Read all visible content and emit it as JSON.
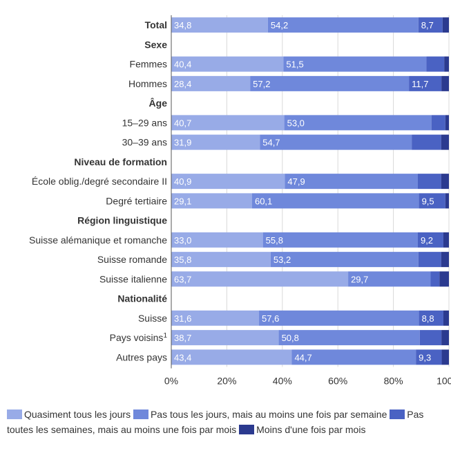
{
  "chart_data": {
    "type": "bar",
    "orientation": "horizontal",
    "stacked": true,
    "rows": [
      {
        "label": "Total",
        "kind": "row",
        "bold": true,
        "values": [
          34.8,
          54.2,
          8.7,
          2.3
        ],
        "labels": [
          "34,8",
          "54,2",
          "8,7",
          ""
        ]
      },
      {
        "label": "Sexe",
        "kind": "header"
      },
      {
        "label": "Femmes",
        "kind": "row",
        "values": [
          40.4,
          51.5,
          6.4,
          1.7
        ],
        "labels": [
          "40,4",
          "51,5",
          "",
          ""
        ]
      },
      {
        "label": "Hommes",
        "kind": "row",
        "values": [
          28.4,
          57.2,
          11.7,
          2.7
        ],
        "labels": [
          "28,4",
          "57,2",
          "11,7",
          ""
        ]
      },
      {
        "label": "Âge",
        "kind": "header"
      },
      {
        "label": "15–29 ans",
        "kind": "row",
        "values": [
          40.7,
          53.0,
          5.0,
          1.3
        ],
        "labels": [
          "40,7",
          "53,0",
          "",
          ""
        ]
      },
      {
        "label": "30–39 ans",
        "kind": "row",
        "values": [
          31.9,
          54.7,
          10.6,
          2.8
        ],
        "labels": [
          "31,9",
          "54,7",
          "",
          ""
        ]
      },
      {
        "label": "Niveau de formation",
        "kind": "header"
      },
      {
        "label": "École oblig./degré secondaire II",
        "kind": "row",
        "values": [
          40.9,
          47.9,
          8.4,
          2.8
        ],
        "labels": [
          "40,9",
          "47,9",
          "",
          ""
        ]
      },
      {
        "label": "Degré tertiaire",
        "kind": "row",
        "values": [
          29.1,
          60.1,
          9.5,
          1.3
        ],
        "labels": [
          "29,1",
          "60,1",
          "9,5",
          ""
        ]
      },
      {
        "label": "Région linguistique",
        "kind": "header"
      },
      {
        "label": "Suisse alémanique et romanche",
        "kind": "row",
        "values": [
          33.0,
          55.8,
          9.2,
          2.0
        ],
        "labels": [
          "33,0",
          "55,8",
          "9,2",
          ""
        ]
      },
      {
        "label": "Suisse romande",
        "kind": "row",
        "values": [
          35.8,
          53.2,
          8.2,
          2.8
        ],
        "labels": [
          "35,8",
          "53,2",
          "",
          ""
        ]
      },
      {
        "label": "Suisse italienne",
        "kind": "row",
        "values": [
          63.7,
          29.7,
          3.2,
          3.4
        ],
        "labels": [
          "63,7",
          "29,7",
          "",
          ""
        ]
      },
      {
        "label": "Nationalité",
        "kind": "header"
      },
      {
        "label": "Suisse",
        "kind": "row",
        "values": [
          31.6,
          57.6,
          8.8,
          2.0
        ],
        "labels": [
          "31,6",
          "57,6",
          "8,8",
          ""
        ]
      },
      {
        "label": "Pays voisins",
        "sup": "1",
        "kind": "row",
        "values": [
          38.7,
          50.8,
          7.8,
          2.7
        ],
        "labels": [
          "38,7",
          "50,8",
          "",
          ""
        ]
      },
      {
        "label": "Autres pays",
        "kind": "row",
        "values": [
          43.4,
          44.7,
          9.3,
          2.6
        ],
        "labels": [
          "43,4",
          "44,7",
          "9,3",
          ""
        ]
      }
    ],
    "series": [
      {
        "name": "Quasiment tous les jours",
        "color": "#98abe7"
      },
      {
        "name": "Pas tous les jours, mais au moins une fois par semaine",
        "color": "#6f88db"
      },
      {
        "name": "Pas toutes les semaines, mais au moins une fois par mois",
        "color": "#4a62c3"
      },
      {
        "name": "Moins d'une fois par mois",
        "color": "#2b3a8f"
      }
    ],
    "xlim": [
      0,
      100
    ],
    "xticks": [
      "0%",
      "20%",
      "40%",
      "60%",
      "80%",
      "100%"
    ],
    "grid": true,
    "legend_position": "bottom"
  }
}
